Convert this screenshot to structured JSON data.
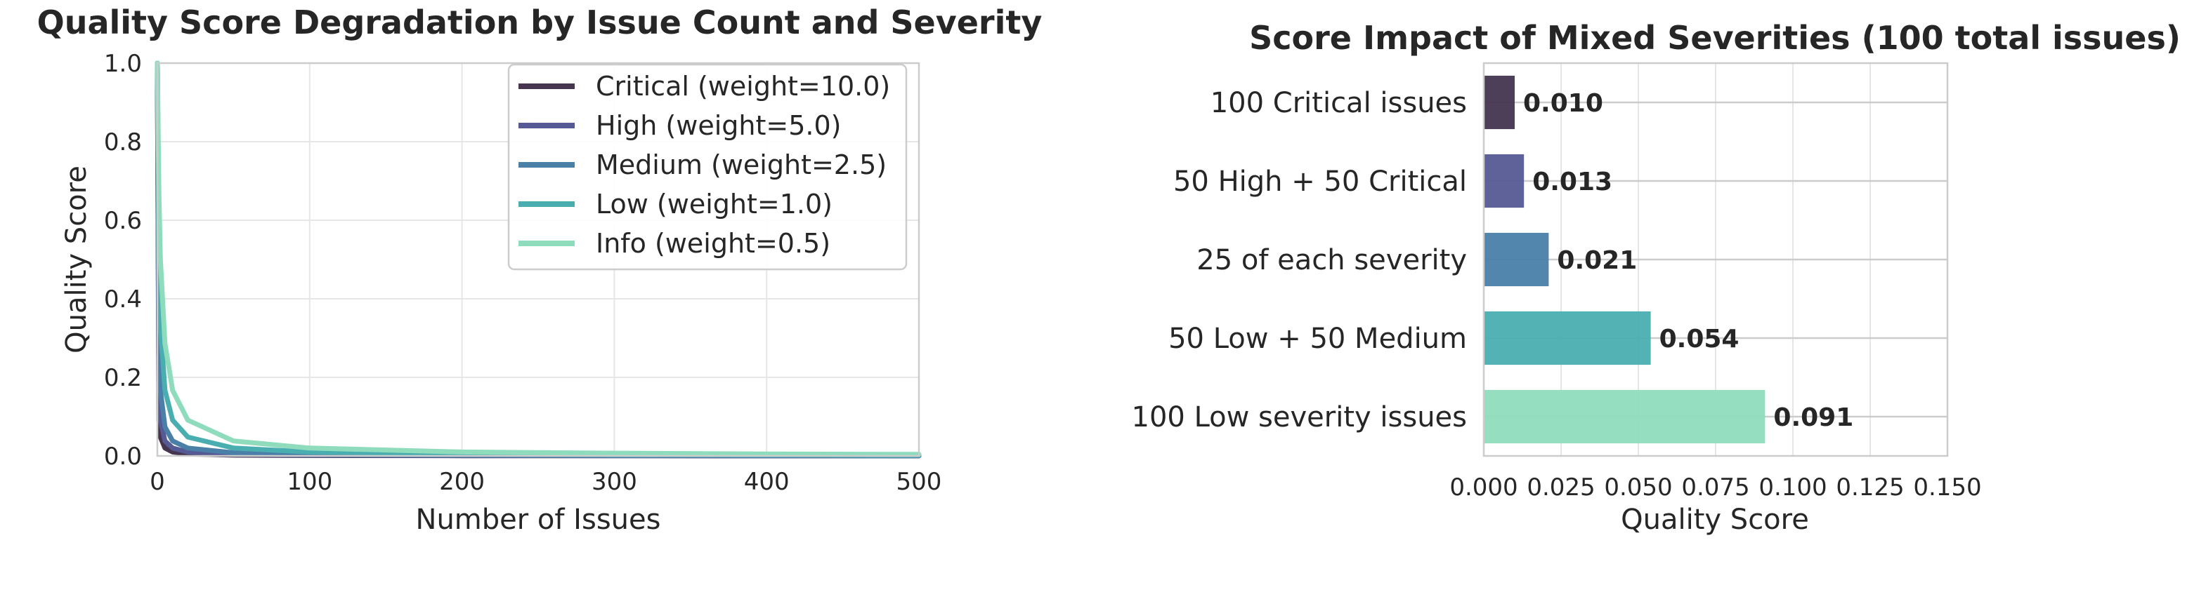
{
  "chart_data": [
    {
      "type": "line",
      "title": "Quality Score Degradation by Issue Count and Severity",
      "xlabel": "Number of Issues",
      "ylabel": "Quality Score",
      "xlim": [
        0,
        500
      ],
      "ylim": [
        0,
        1.0
      ],
      "xticks": [
        0,
        100,
        200,
        300,
        400,
        500
      ],
      "yticks": [
        0.0,
        0.2,
        0.4,
        0.6,
        0.8,
        1.0
      ],
      "xtick_labels": [
        "0",
        "100",
        "200",
        "300",
        "400",
        "500"
      ],
      "ytick_labels": [
        "0.0",
        "0.2",
        "0.4",
        "0.6",
        "0.8",
        "1.0"
      ],
      "grid": true,
      "legend_position": "top-right",
      "x": [
        0,
        1,
        2,
        5,
        10,
        20,
        50,
        100,
        200,
        300,
        400,
        500
      ],
      "series": [
        {
          "name": "Critical (weight=10.0)",
          "color": "#45354f",
          "values": [
            1.0,
            0.091,
            0.048,
            0.02,
            0.01,
            0.005,
            0.002,
            0.001,
            0.0005,
            0.0003,
            0.00025,
            0.0002
          ]
        },
        {
          "name": "High (weight=5.0)",
          "color": "#555a94",
          "values": [
            1.0,
            0.167,
            0.091,
            0.038,
            0.02,
            0.01,
            0.004,
            0.002,
            0.001,
            0.0007,
            0.0005,
            0.0004
          ]
        },
        {
          "name": "Medium (weight=2.5)",
          "color": "#4a80a8",
          "values": [
            1.0,
            0.286,
            0.167,
            0.074,
            0.038,
            0.02,
            0.008,
            0.004,
            0.002,
            0.0013,
            0.001,
            0.0008
          ]
        },
        {
          "name": "Low (weight=1.0)",
          "color": "#4aaeb0",
          "values": [
            1.0,
            0.5,
            0.333,
            0.167,
            0.091,
            0.048,
            0.02,
            0.01,
            0.005,
            0.003,
            0.0025,
            0.002
          ]
        },
        {
          "name": "Info (weight=0.5)",
          "color": "#8fdcbd",
          "values": [
            1.0,
            0.667,
            0.5,
            0.286,
            0.167,
            0.091,
            0.038,
            0.02,
            0.01,
            0.007,
            0.005,
            0.004
          ]
        }
      ]
    },
    {
      "type": "bar",
      "orientation": "horizontal",
      "title": "Score Impact of Mixed Severities (100 total issues)",
      "xlabel": "Quality Score",
      "ylabel": "",
      "xlim": [
        0,
        0.15
      ],
      "xticks": [
        0.0,
        0.025,
        0.05,
        0.075,
        0.1,
        0.125,
        0.15
      ],
      "xtick_labels": [
        "0.000",
        "0.025",
        "0.050",
        "0.075",
        "0.100",
        "0.125",
        "0.150"
      ],
      "grid": true,
      "categories": [
        "100 Critical issues",
        "50 High + 50 Critical",
        "25 of each severity",
        "50 Low + 50 Medium",
        "100 Low severity issues"
      ],
      "values": [
        0.01,
        0.013,
        0.021,
        0.054,
        0.091
      ],
      "value_labels": [
        "0.010",
        "0.013",
        "0.021",
        "0.054",
        "0.091"
      ],
      "colors": [
        "#45354f",
        "#555a94",
        "#4a80a8",
        "#4aaeb0",
        "#8fdcbd"
      ]
    }
  ]
}
